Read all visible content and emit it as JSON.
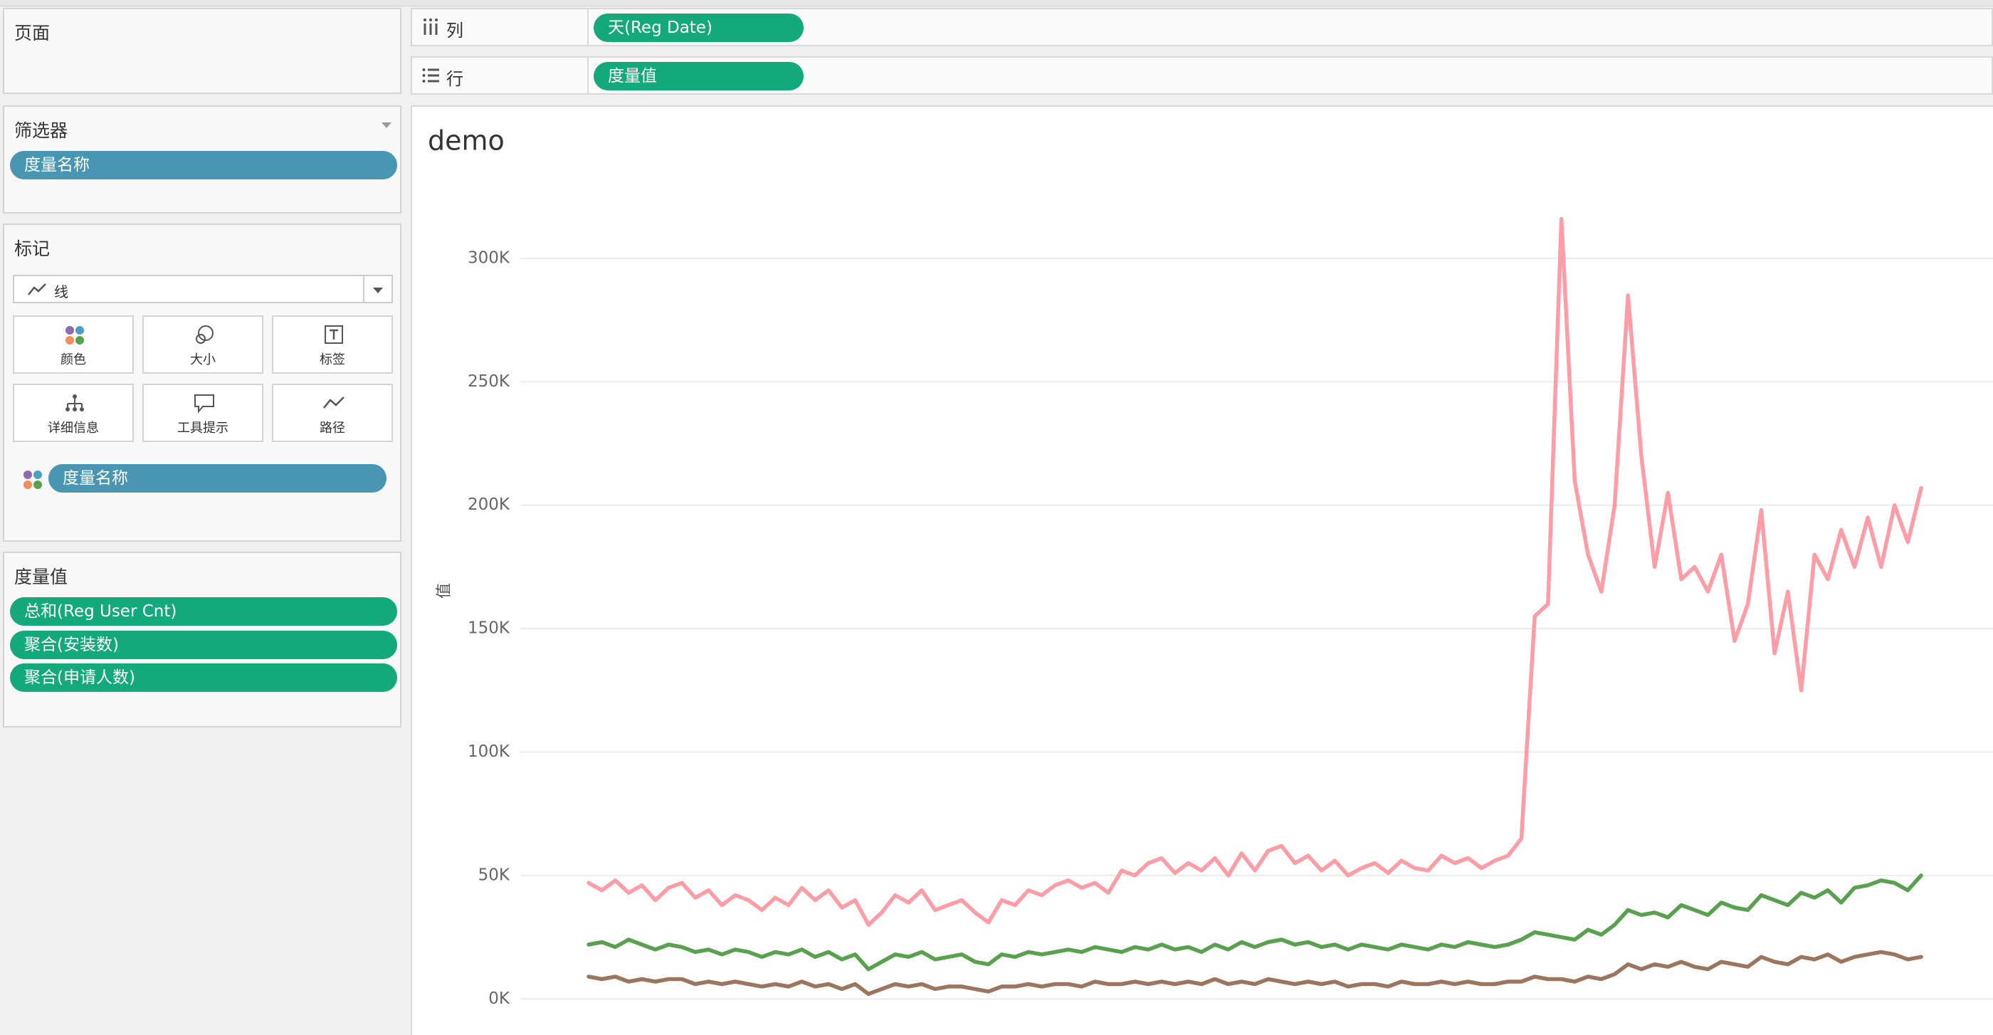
{
  "sidebar": {
    "pages": {
      "title": "页面"
    },
    "filters": {
      "title": "筛选器",
      "pills": [
        "度量名称"
      ]
    },
    "marks": {
      "title": "标记",
      "mark_type": "线",
      "buttons": [
        "颜色",
        "大小",
        "标签",
        "详细信息",
        "工具提示",
        "路径"
      ],
      "pills": [
        "度量名称"
      ]
    },
    "measure_values": {
      "title": "度量值",
      "pills": [
        "总和(Reg User Cnt)",
        "聚合(安装数)",
        "聚合(申请人数)"
      ]
    }
  },
  "shelves": {
    "columns": {
      "label": "列",
      "pills": [
        "天(Reg Date)"
      ]
    },
    "rows": {
      "label": "行",
      "pills": [
        "度量值"
      ]
    }
  },
  "chart_data": {
    "type": "line",
    "title": "demo",
    "y_label": "值",
    "categories": [
      null,
      null,
      null,
      null,
      null,
      null,
      null,
      null,
      null,
      null,
      null,
      null,
      null,
      null,
      null,
      null,
      null,
      null,
      null,
      null,
      null,
      null,
      null,
      null,
      null,
      null,
      null,
      null,
      null,
      null,
      null,
      null,
      null,
      null,
      null,
      null,
      null,
      null,
      null,
      null,
      null,
      null,
      null,
      null,
      null,
      null,
      null,
      null,
      null,
      null,
      null,
      null,
      null,
      null,
      null,
      null,
      null,
      null,
      null,
      null,
      null,
      null,
      null,
      null,
      null,
      null,
      null,
      null,
      null,
      null,
      null,
      null,
      null,
      null,
      null,
      null,
      null,
      null,
      null,
      null,
      null,
      null,
      null,
      null,
      null,
      null,
      null,
      null,
      null,
      null,
      null,
      null,
      null,
      null,
      null,
      null,
      null,
      null,
      null,
      null,
      null
    ],
    "series": [
      {
        "color": "#ff9da7",
        "values": [
          47000,
          44000,
          48000,
          43000,
          46000,
          40000,
          45000,
          47000,
          41000,
          44000,
          38000,
          42000,
          40000,
          36000,
          41000,
          38000,
          45000,
          40000,
          44000,
          37000,
          40000,
          30000,
          35000,
          42000,
          39000,
          44000,
          36000,
          38000,
          40000,
          35000,
          31000,
          40000,
          38000,
          44000,
          42000,
          46000,
          48000,
          45000,
          47000,
          43000,
          52000,
          50000,
          55000,
          57000,
          51000,
          55000,
          52000,
          57000,
          50000,
          59000,
          52000,
          60000,
          62000,
          55000,
          58000,
          52000,
          56000,
          50000,
          53000,
          55000,
          51000,
          56000,
          53000,
          52000,
          58000,
          55000,
          57000,
          53000,
          56000,
          58000,
          65000,
          155000,
          160000,
          316000,
          210000,
          180000,
          165000,
          200000,
          285000,
          220000,
          175000,
          205000,
          170000,
          175000,
          165000,
          180000,
          145000,
          160000,
          198000,
          140000,
          165000,
          125000,
          180000,
          170000,
          190000,
          175000,
          195000,
          175000,
          200000,
          185000,
          207000
        ]
      },
      {
        "color": "#59a14f",
        "values": [
          22000,
          23000,
          21000,
          24000,
          22000,
          20000,
          22000,
          21000,
          19000,
          20000,
          18000,
          20000,
          19000,
          17000,
          19000,
          18000,
          20000,
          17000,
          19000,
          16000,
          18000,
          12000,
          15000,
          18000,
          17000,
          19000,
          16000,
          17000,
          18000,
          15000,
          14000,
          18000,
          17000,
          19000,
          18000,
          19000,
          20000,
          19000,
          21000,
          20000,
          19000,
          21000,
          20000,
          22000,
          20000,
          21000,
          19000,
          22000,
          20000,
          23000,
          21000,
          23000,
          24000,
          22000,
          23000,
          21000,
          22000,
          20000,
          22000,
          21000,
          20000,
          22000,
          21000,
          20000,
          22000,
          21000,
          23000,
          22000,
          21000,
          22000,
          24000,
          27000,
          26000,
          25000,
          24000,
          28000,
          26000,
          30000,
          36000,
          34000,
          35000,
          33000,
          38000,
          36000,
          34000,
          39000,
          37000,
          36000,
          42000,
          40000,
          38000,
          43000,
          41000,
          44000,
          39000,
          45000,
          46000,
          48000,
          47000,
          44000,
          50000
        ]
      },
      {
        "color": "#9c755f",
        "values": [
          9000,
          8000,
          9000,
          7000,
          8000,
          7000,
          8000,
          8000,
          6000,
          7000,
          6000,
          7000,
          6000,
          5000,
          6000,
          5000,
          7000,
          5000,
          6000,
          4000,
          6000,
          2000,
          4000,
          6000,
          5000,
          6000,
          4000,
          5000,
          5000,
          4000,
          3000,
          5000,
          5000,
          6000,
          5000,
          6000,
          6000,
          5000,
          7000,
          6000,
          6000,
          7000,
          6000,
          7000,
          6000,
          7000,
          6000,
          8000,
          6000,
          7000,
          6000,
          8000,
          7000,
          6000,
          7000,
          6000,
          7000,
          5000,
          6000,
          6000,
          5000,
          7000,
          6000,
          6000,
          7000,
          6000,
          7000,
          6000,
          6000,
          7000,
          7000,
          9000,
          8000,
          8000,
          7000,
          9000,
          8000,
          10000,
          14000,
          12000,
          14000,
          13000,
          15000,
          13000,
          12000,
          15000,
          14000,
          13000,
          17000,
          15000,
          14000,
          17000,
          16000,
          18000,
          15000,
          17000,
          18000,
          19000,
          18000,
          16000,
          17000
        ]
      }
    ],
    "ylim": [
      -8000,
      332000
    ],
    "yticks": [
      {
        "value": 0,
        "label": "0K"
      },
      {
        "value": 50000,
        "label": "50K"
      },
      {
        "value": 100000,
        "label": "100K"
      },
      {
        "value": 150000,
        "label": "150K"
      },
      {
        "value": 200000,
        "label": "200K"
      },
      {
        "value": 250000,
        "label": "250K"
      },
      {
        "value": 300000,
        "label": "300K"
      }
    ],
    "grid": true
  }
}
